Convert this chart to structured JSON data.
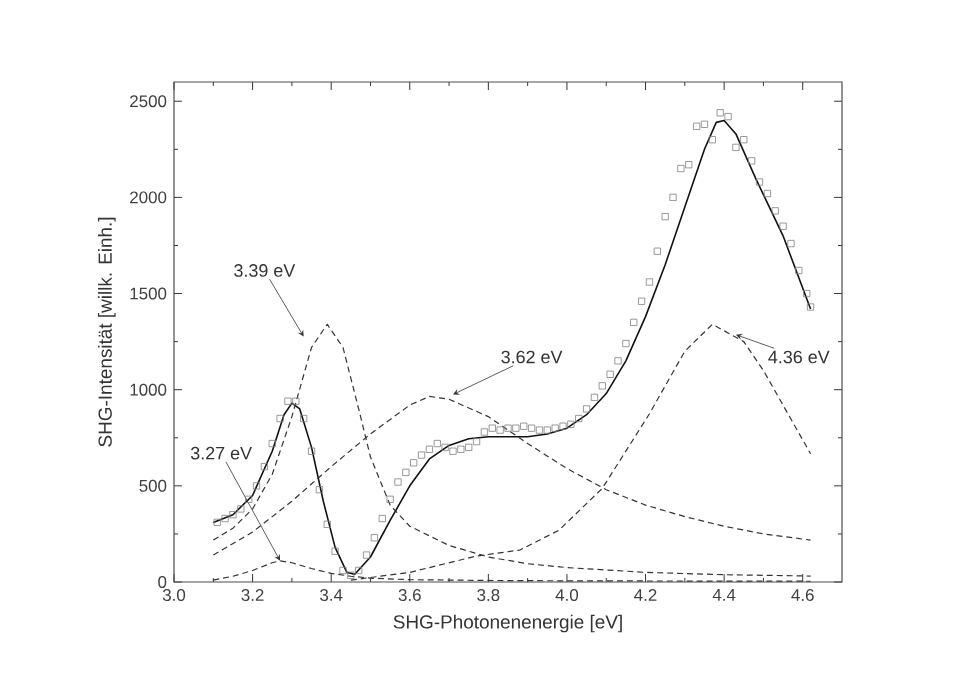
{
  "chart_data": {
    "type": "line",
    "xlabel": "SHG-Photonenenergie [eV]",
    "ylabel": "SHG-Intensität [willk. Einh.]",
    "xlim": [
      3.0,
      4.7
    ],
    "ylim": [
      0,
      2600
    ],
    "xticks": [
      {
        "value": 3.0,
        "label": "3.0"
      },
      3.2,
      3.4,
      3.6,
      3.8,
      {
        "value": 4.0,
        "label": "4.0"
      },
      4.2,
      4.4,
      4.6
    ],
    "yticks": [
      0,
      500,
      1000,
      1500,
      2000,
      2500
    ],
    "annotations": [
      {
        "text": "3.27 eV",
        "x": 3.27,
        "y": 110
      },
      {
        "text": "3.39 eV",
        "x": 3.33,
        "y": 1276
      },
      {
        "text": "3.62 eV",
        "x": 3.71,
        "y": 975
      },
      {
        "text": "4.36 eV",
        "x": 4.43,
        "y": 1286
      }
    ],
    "series": [
      {
        "type": "scatter",
        "marker": "square",
        "color": "#808080",
        "x": [
          3.11,
          3.13,
          3.15,
          3.17,
          3.19,
          3.21,
          3.23,
          3.25,
          3.27,
          3.29,
          3.31,
          3.33,
          3.35,
          3.37,
          3.39,
          3.41,
          3.43,
          3.45,
          3.47,
          3.49,
          3.51,
          3.53,
          3.55,
          3.57,
          3.59,
          3.61,
          3.63,
          3.65,
          3.67,
          3.69,
          3.71,
          3.73,
          3.75,
          3.77,
          3.79,
          3.81,
          3.83,
          3.85,
          3.87,
          3.89,
          3.91,
          3.93,
          3.95,
          3.97,
          3.99,
          4.01,
          4.03,
          4.05,
          4.07,
          4.09,
          4.11,
          4.13,
          4.15,
          4.17,
          4.19,
          4.21,
          4.23,
          4.25,
          4.27,
          4.29,
          4.31,
          4.33,
          4.35,
          4.37,
          4.39,
          4.41,
          4.43,
          4.45,
          4.47,
          4.49,
          4.51,
          4.53,
          4.55,
          4.57,
          4.59,
          4.61,
          4.62
        ],
        "values": [
          310,
          330,
          350,
          380,
          430,
          500,
          600,
          720,
          850,
          940,
          940,
          850,
          680,
          480,
          300,
          160,
          60,
          35,
          60,
          140,
          230,
          330,
          430,
          520,
          570,
          620,
          660,
          690,
          720,
          700,
          680,
          690,
          700,
          730,
          780,
          800,
          790,
          800,
          800,
          810,
          800,
          790,
          790,
          800,
          810,
          820,
          850,
          900,
          960,
          1020,
          1080,
          1150,
          1240,
          1350,
          1460,
          1560,
          1720,
          1900,
          2000,
          2150,
          2170,
          2370,
          2380,
          2300,
          2440,
          2420,
          2260,
          2300,
          2190,
          2080,
          2020,
          1930,
          1850,
          1760,
          1620,
          1500,
          1430
        ]
      },
      {
        "line_style": "solid",
        "color": "#111111",
        "x": [
          3.1,
          3.15,
          3.2,
          3.25,
          3.28,
          3.3,
          3.32,
          3.35,
          3.38,
          3.41,
          3.44,
          3.46,
          3.5,
          3.55,
          3.6,
          3.65,
          3.7,
          3.75,
          3.8,
          3.85,
          3.9,
          3.95,
          4.0,
          4.05,
          4.1,
          4.15,
          4.2,
          4.25,
          4.3,
          4.35,
          4.38,
          4.4,
          4.43,
          4.48,
          4.55,
          4.62
        ],
        "values": [
          310,
          350,
          450,
          680,
          870,
          930,
          900,
          700,
          420,
          180,
          50,
          40,
          130,
          320,
          500,
          640,
          710,
          745,
          755,
          755,
          755,
          770,
          800,
          870,
          980,
          1150,
          1380,
          1650,
          1950,
          2250,
          2390,
          2400,
          2330,
          2100,
          1800,
          1420
        ]
      },
      {
        "line_style": "dashed",
        "color": "#333333",
        "x": [
          3.1,
          3.15,
          3.2,
          3.25,
          3.27,
          3.3,
          3.35,
          3.4,
          3.45,
          3.5,
          3.6,
          3.8,
          4.0,
          4.3,
          4.62
        ],
        "values": [
          10,
          30,
          60,
          100,
          110,
          100,
          70,
          45,
          30,
          20,
          12,
          8,
          6,
          5,
          4
        ]
      },
      {
        "line_style": "dashed",
        "color": "#333333",
        "x": [
          3.1,
          3.15,
          3.2,
          3.25,
          3.3,
          3.35,
          3.39,
          3.43,
          3.47,
          3.5,
          3.55,
          3.6,
          3.7,
          3.8,
          3.9,
          4.0,
          4.2,
          4.4,
          4.62
        ],
        "values": [
          218,
          280,
          380,
          560,
          860,
          1220,
          1340,
          1220,
          900,
          650,
          400,
          290,
          190,
          130,
          95,
          75,
          50,
          38,
          31
        ]
      },
      {
        "line_style": "dashed",
        "color": "#333333",
        "x": [
          3.1,
          3.2,
          3.3,
          3.4,
          3.5,
          3.6,
          3.65,
          3.7,
          3.8,
          3.9,
          4.0,
          4.1,
          4.2,
          4.3,
          4.4,
          4.5,
          4.62
        ],
        "values": [
          140,
          260,
          420,
          600,
          770,
          920,
          965,
          950,
          860,
          720,
          590,
          480,
          400,
          340,
          290,
          250,
          218
        ]
      },
      {
        "line_style": "dashed",
        "color": "#333333",
        "x": [
          3.45,
          3.6,
          3.77,
          3.88,
          3.98,
          4.09,
          4.21,
          4.3,
          4.37,
          4.45,
          4.5,
          4.62
        ],
        "values": [
          10,
          50,
          135,
          166,
          270,
          487,
          875,
          1200,
          1340,
          1250,
          1100,
          667
        ]
      }
    ]
  }
}
